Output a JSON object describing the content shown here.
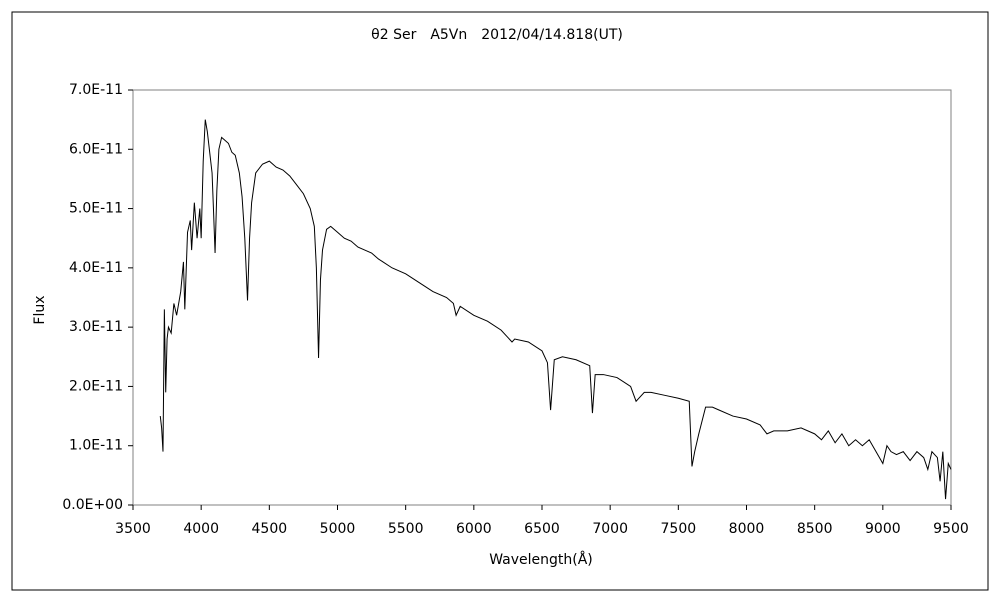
{
  "chart_data": {
    "type": "line",
    "title": "θ2 Ser　A5Vn　2012/04/14.818(UT)",
    "x_label": "Wavelength(Å)",
    "y_label": "Flux",
    "color": "#000000",
    "x": [
      3700,
      3710,
      3720,
      3730,
      3740,
      3750,
      3760,
      3780,
      3800,
      3820,
      3850,
      3870,
      3880,
      3900,
      3920,
      3930,
      3950,
      3970,
      3990,
      4000,
      4015,
      4030,
      4045,
      4060,
      4080,
      4090,
      4102,
      4115,
      4130,
      4150,
      4175,
      4200,
      4225,
      4250,
      4280,
      4300,
      4320,
      4340,
      4355,
      4370,
      4400,
      4450,
      4500,
      4550,
      4600,
      4650,
      4700,
      4750,
      4800,
      4830,
      4845,
      4861,
      4875,
      4890,
      4920,
      4950,
      5000,
      5050,
      5100,
      5150,
      5200,
      5250,
      5300,
      5400,
      5500,
      5600,
      5700,
      5800,
      5850,
      5870,
      5900,
      6000,
      6100,
      6200,
      6280,
      6300,
      6400,
      6500,
      6540,
      6563,
      6590,
      6650,
      6750,
      6850,
      6870,
      6890,
      6950,
      7050,
      7150,
      7190,
      7210,
      7250,
      7300,
      7400,
      7500,
      7580,
      7600,
      7620,
      7650,
      7700,
      7750,
      7800,
      7900,
      8000,
      8100,
      8150,
      8200,
      8300,
      8400,
      8500,
      8550,
      8600,
      8650,
      8700,
      8750,
      8800,
      8850,
      8900,
      8950,
      9000,
      9030,
      9060,
      9100,
      9150,
      9200,
      9250,
      9300,
      9330,
      9360,
      9400,
      9420,
      9440,
      9460,
      9480,
      9500
    ],
    "values": [
      1.5e-11,
      1.3e-11,
      9e-12,
      3.3e-11,
      1.9e-11,
      2.8e-11,
      3e-11,
      2.9e-11,
      3.4e-11,
      3.2e-11,
      3.6e-11,
      4.1e-11,
      3.3e-11,
      4.6e-11,
      4.8e-11,
      4.3e-11,
      5.1e-11,
      4.5e-11,
      5e-11,
      4.5e-11,
      5.8e-11,
      6.5e-11,
      6.3e-11,
      6e-11,
      5.6e-11,
      5e-11,
      4.25e-11,
      5.3e-11,
      6e-11,
      6.2e-11,
      6.15e-11,
      6.1e-11,
      5.95e-11,
      5.9e-11,
      5.6e-11,
      5.2e-11,
      4.5e-11,
      3.45e-11,
      4.5e-11,
      5.1e-11,
      5.6e-11,
      5.75e-11,
      5.8e-11,
      5.7e-11,
      5.65e-11,
      5.55e-11,
      5.4e-11,
      5.25e-11,
      5e-11,
      4.7e-11,
      4e-11,
      2.48e-11,
      3.8e-11,
      4.3e-11,
      4.65e-11,
      4.7e-11,
      4.6e-11,
      4.5e-11,
      4.45e-11,
      4.35e-11,
      4.3e-11,
      4.25e-11,
      4.15e-11,
      4e-11,
      3.9e-11,
      3.75e-11,
      3.6e-11,
      3.5e-11,
      3.4e-11,
      3.2e-11,
      3.35e-11,
      3.2e-11,
      3.1e-11,
      2.95e-11,
      2.75e-11,
      2.8e-11,
      2.75e-11,
      2.6e-11,
      2.4e-11,
      1.6e-11,
      2.45e-11,
      2.5e-11,
      2.45e-11,
      2.35e-11,
      1.55e-11,
      2.2e-11,
      2.2e-11,
      2.15e-11,
      2e-11,
      1.75e-11,
      1.8e-11,
      1.9e-11,
      1.9e-11,
      1.85e-11,
      1.8e-11,
      1.75e-11,
      6.5e-12,
      9e-12,
      1.2e-11,
      1.65e-11,
      1.65e-11,
      1.6e-11,
      1.5e-11,
      1.45e-11,
      1.35e-11,
      1.2e-11,
      1.25e-11,
      1.25e-11,
      1.3e-11,
      1.2e-11,
      1.1e-11,
      1.25e-11,
      1.05e-11,
      1.2e-11,
      1e-11,
      1.1e-11,
      1e-11,
      1.1e-11,
      9e-12,
      7e-12,
      1e-11,
      9e-12,
      8.5e-12,
      9e-12,
      7.5e-12,
      9e-12,
      8e-12,
      6e-12,
      9e-12,
      8e-12,
      4e-12,
      9e-12,
      1e-12,
      7e-12,
      6e-12
    ],
    "xlim": [
      3500,
      9500
    ],
    "xticks": [
      3500,
      4000,
      4500,
      5000,
      5500,
      6000,
      6500,
      7000,
      7500,
      8000,
      8500,
      9000,
      9500
    ],
    "ylim": [
      0,
      7e-11
    ],
    "yticks": [
      {
        "value": 0,
        "label": "0.0E+00"
      },
      {
        "value": 1e-11,
        "label": "1.0E-11"
      },
      {
        "value": 2e-11,
        "label": "2.0E-11"
      },
      {
        "value": 3e-11,
        "label": "3.0E-11"
      },
      {
        "value": 4e-11,
        "label": "4.0E-11"
      },
      {
        "value": 5e-11,
        "label": "5.0E-11"
      },
      {
        "value": 6e-11,
        "label": "6.0E-11"
      },
      {
        "value": 7e-11,
        "label": "7.0E-11"
      }
    ],
    "grid": false
  }
}
